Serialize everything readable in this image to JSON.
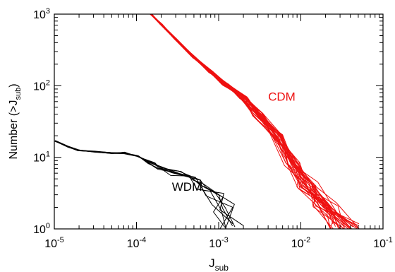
{
  "chart_data": {
    "type": "line",
    "xscale": "log",
    "yscale": "log",
    "xlim": [
      1e-05,
      0.1
    ],
    "ylim": [
      1,
      1000
    ],
    "xlabel": {
      "base": "J",
      "sub": "sub"
    },
    "ylabel": {
      "prefix": "Number (>J",
      "sub": "sub",
      "suffix": ")"
    },
    "grid": false,
    "legend": "none",
    "x_ticks": [
      {
        "value": 1e-05,
        "base": "10",
        "exp": "-5"
      },
      {
        "value": 0.0001,
        "base": "10",
        "exp": "-4"
      },
      {
        "value": 0.001,
        "base": "10",
        "exp": "-3"
      },
      {
        "value": 0.01,
        "base": "10",
        "exp": "-2"
      },
      {
        "value": 0.1,
        "base": "10",
        "exp": "-1"
      }
    ],
    "y_ticks": [
      {
        "value": 1,
        "base": "10",
        "exp": "0"
      },
      {
        "value": 10,
        "base": "10",
        "exp": "1"
      },
      {
        "value": 100,
        "base": "10",
        "exp": "2"
      },
      {
        "value": 1000,
        "base": "10",
        "exp": "3"
      }
    ],
    "annotations": [
      {
        "text": "CDM",
        "x": 0.004,
        "y": 62,
        "color": "#ee1111"
      },
      {
        "text": "WDM",
        "x": 0.00027,
        "y": 3.4,
        "color": "#000000"
      }
    ],
    "series": [
      {
        "label": "CDM",
        "color": "#ee1111",
        "realizations": 30,
        "x": [
          0.00015,
          0.0002,
          0.0003,
          0.0005,
          0.0008,
          0.0012,
          0.002,
          0.003,
          0.005,
          0.008,
          0.012,
          0.02,
          0.035
        ],
        "y": [
          1000,
          720,
          450,
          250,
          155,
          105,
          68,
          40,
          20,
          8,
          4,
          2,
          1
        ]
      },
      {
        "label": "WDM",
        "color": "#000000",
        "realizations": 8,
        "x": [
          1e-05,
          1.5e-05,
          2e-05,
          3e-05,
          5e-05,
          7e-05,
          0.0001,
          0.00015,
          0.0002,
          0.0003,
          0.0005,
          0.0007,
          0.0009,
          0.0011,
          0.0013
        ],
        "y": [
          17,
          14,
          12.5,
          12,
          11.5,
          11.5,
          10.5,
          8.5,
          7,
          6,
          5,
          4,
          3,
          2,
          1
        ]
      }
    ]
  }
}
